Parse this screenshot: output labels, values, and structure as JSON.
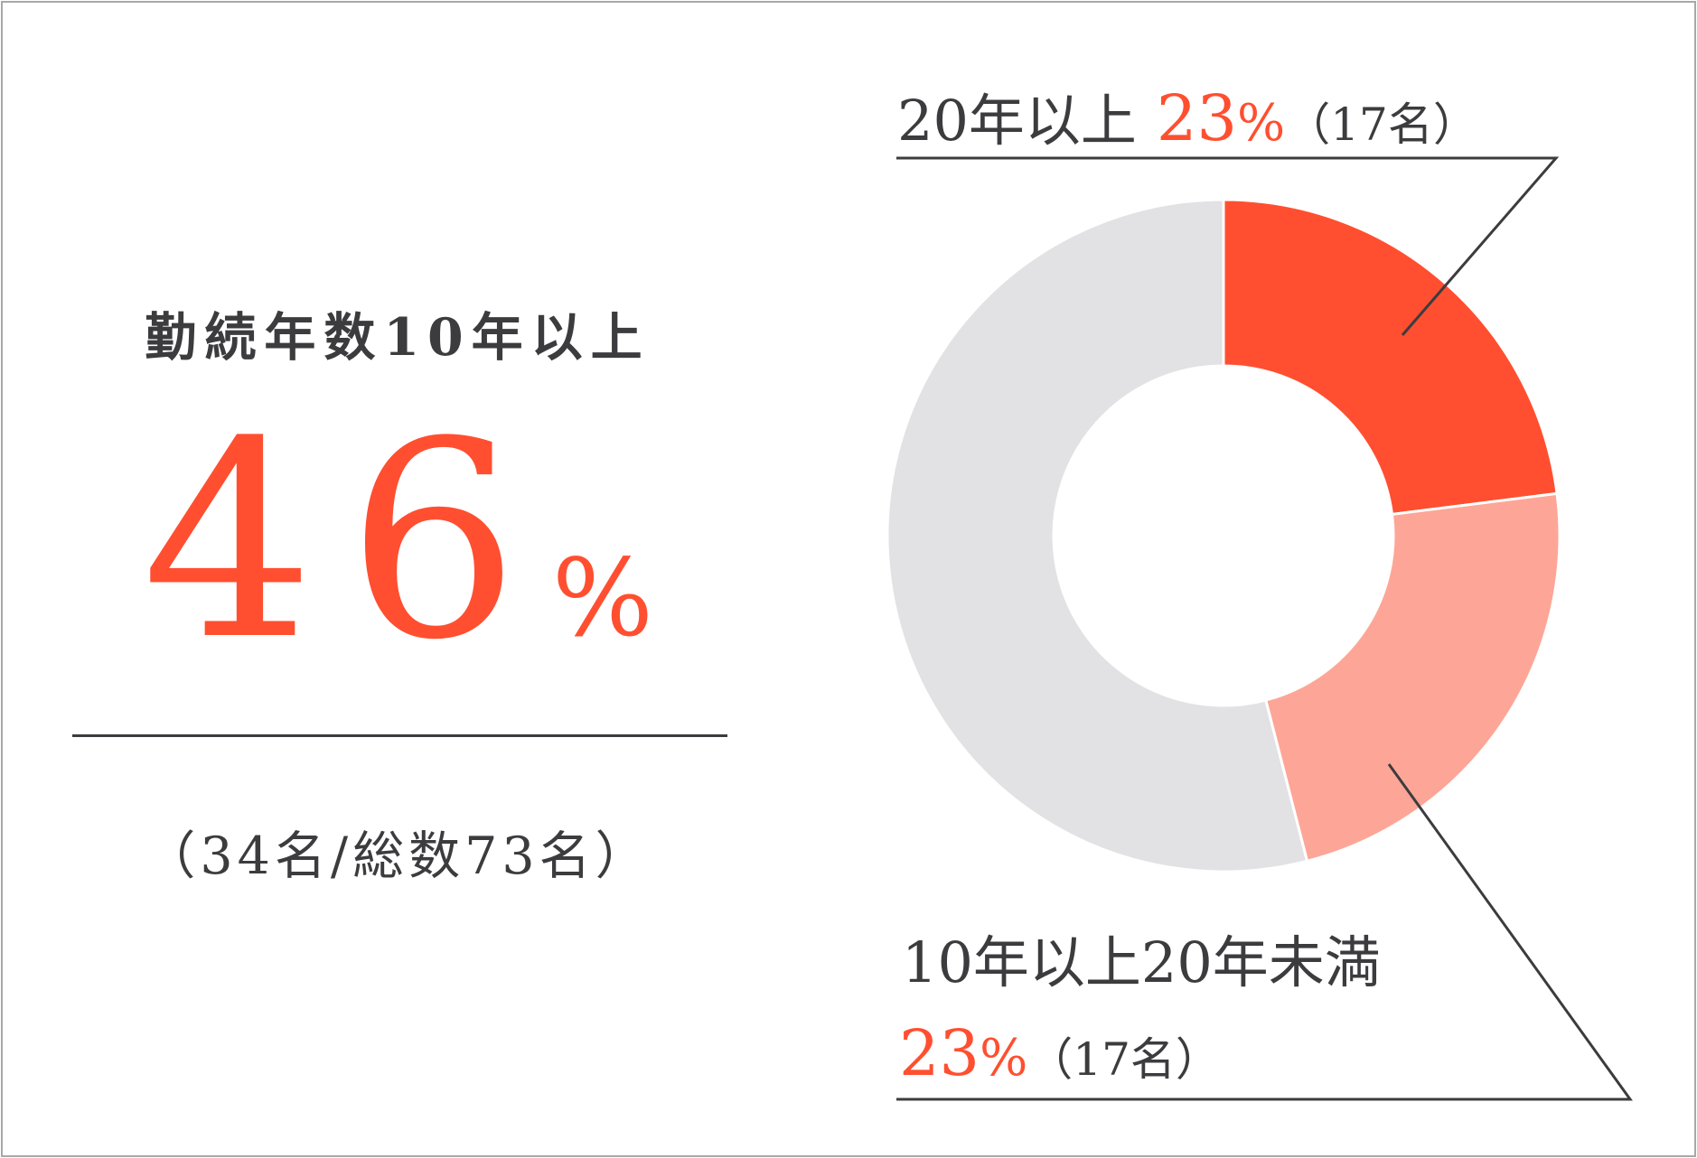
{
  "summary": {
    "heading": "勤続年数10年以上",
    "value": "46",
    "unit": "%",
    "subtext": "（34名/総数73名）"
  },
  "chart_data": {
    "type": "pie",
    "variant": "donut",
    "unit": "%",
    "start_angle": "12 o'clock, clockwise",
    "slices": [
      {
        "label": "20年以上",
        "value": 23,
        "count": "（17名）",
        "color": "#ff4f30"
      },
      {
        "label": "10年以上20年未満",
        "value": 23,
        "count": "（17名）",
        "color": "#fda697"
      },
      {
        "label": "",
        "value": 54,
        "count": "",
        "color": "#e2e2e4"
      }
    ]
  },
  "colors": {
    "accent": "#ff4f30",
    "accent_light": "#fda697",
    "neutral": "#e2e2e4",
    "text": "#3c3c3f",
    "border": "#a8a8a8"
  }
}
